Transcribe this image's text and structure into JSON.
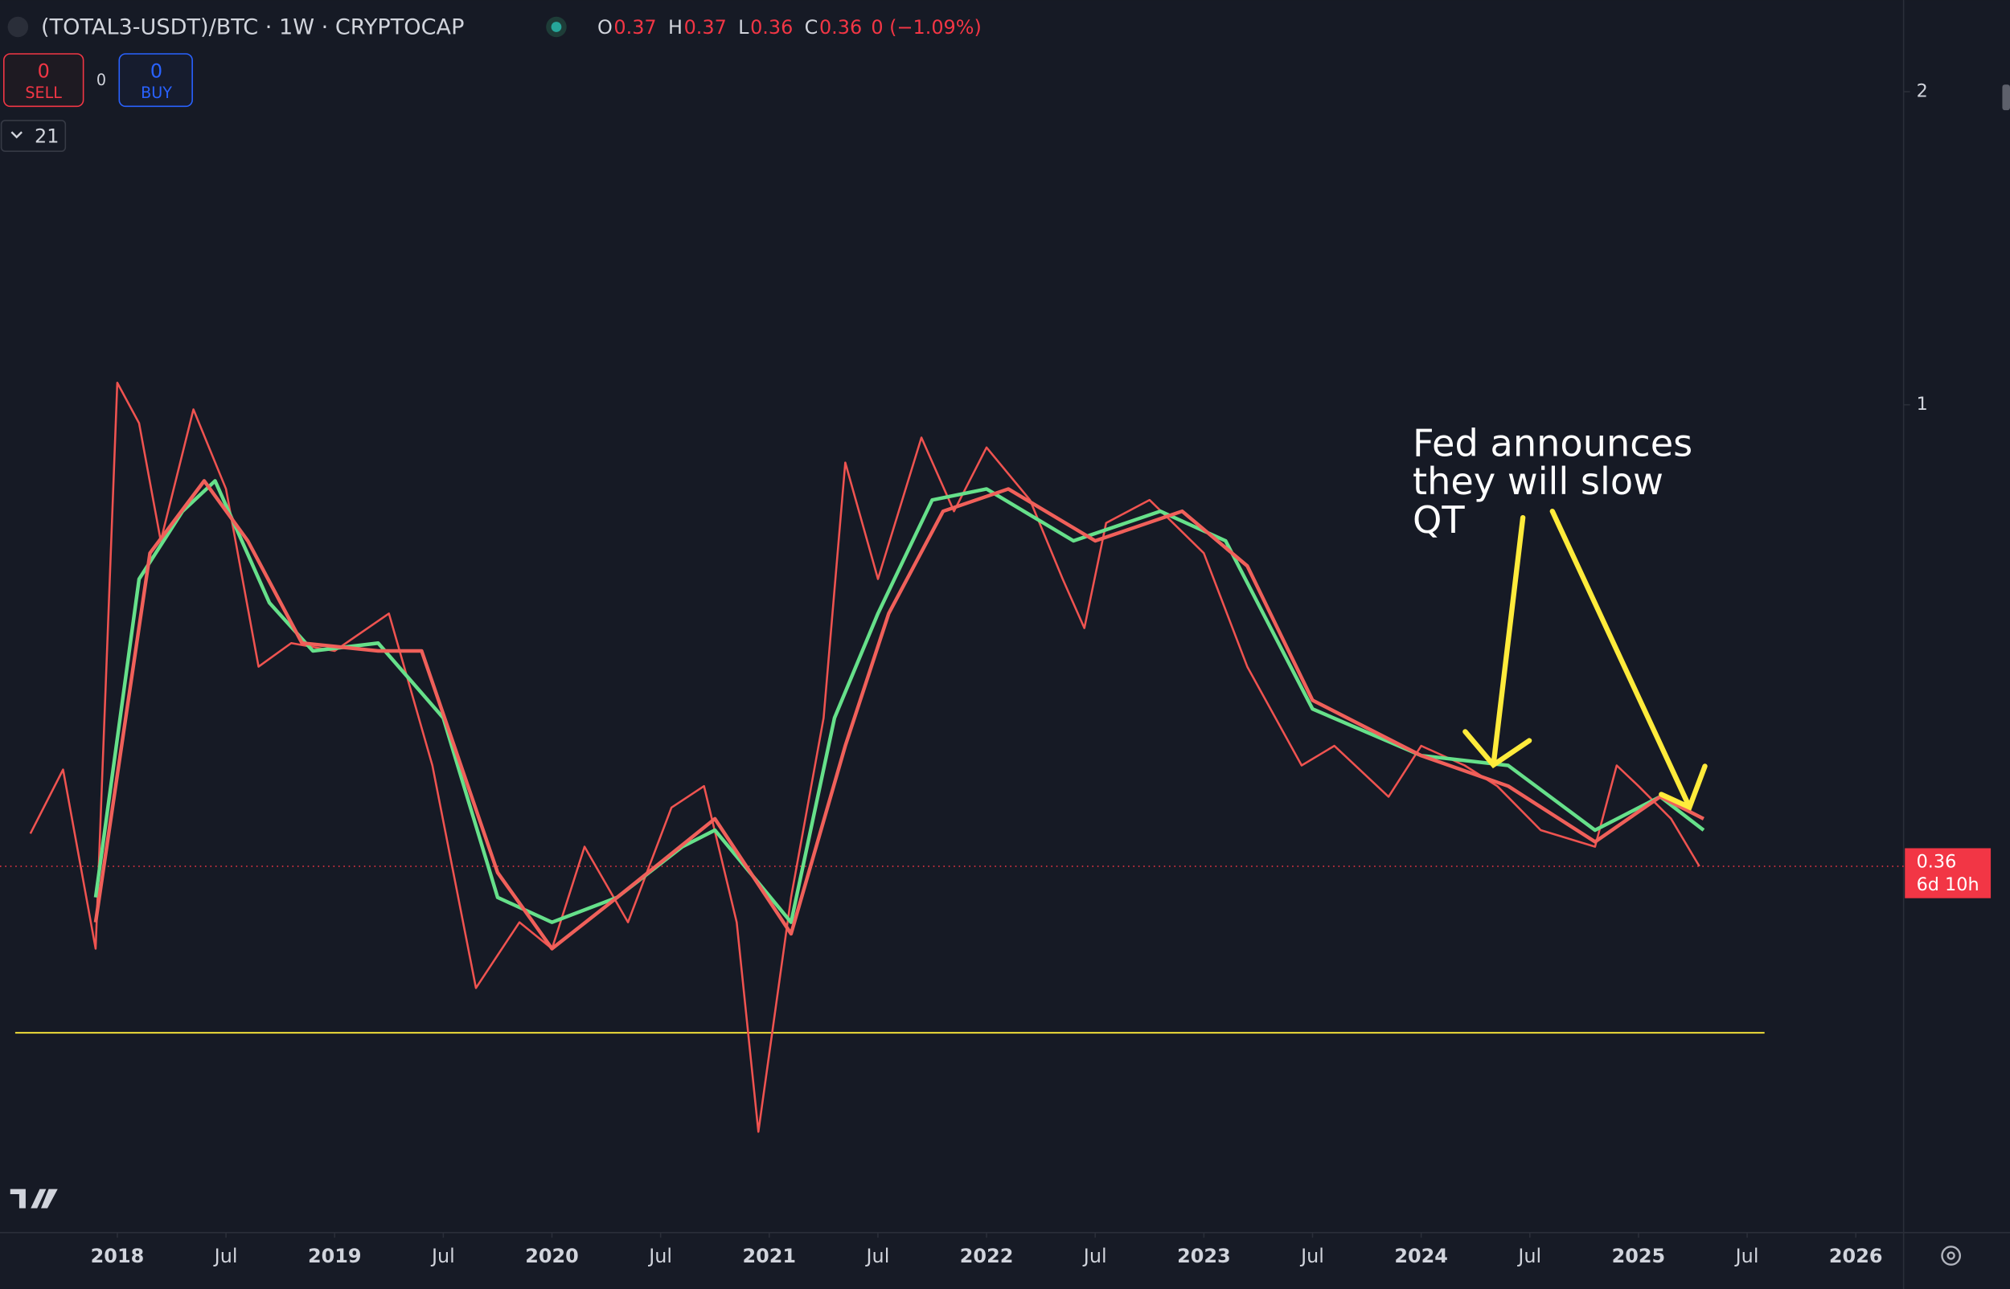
{
  "header": {
    "symbol": "(TOTAL3-USDT)/BTC · 1W · CRYPTOCAP",
    "ohlc": [
      {
        "label": "O",
        "value": "0.37"
      },
      {
        "label": "H",
        "value": "0.37"
      },
      {
        "label": "L",
        "value": "0.36"
      },
      {
        "label": "C",
        "value": "0.36"
      }
    ],
    "change": "0 (−1.09%)"
  },
  "trade": {
    "sell": {
      "price": "0",
      "label": "SELL"
    },
    "spread": "0",
    "buy": {
      "price": "0",
      "label": "BUY"
    }
  },
  "indicator_count": "21",
  "price_badge": {
    "price": "0.36",
    "countdown": "6d 10h"
  },
  "chart_data": {
    "type": "line",
    "log_scale": true,
    "annotation": [
      "Fed announces",
      "they will slow",
      "QT"
    ],
    "xlim": [
      2017.46,
      2026.22
    ],
    "xticks": [
      2018,
      {
        "value": 2018.5,
        "label": "Jul"
      },
      2019,
      {
        "value": 2019.5,
        "label": "Jul"
      },
      2020,
      {
        "value": 2020.5,
        "label": "Jul"
      },
      2021,
      {
        "value": 2021.5,
        "label": "Jul"
      },
      2022,
      {
        "value": 2022.5,
        "label": "Jul"
      },
      2023,
      {
        "value": 2023.5,
        "label": "Jul"
      },
      2024,
      {
        "value": 2024.5,
        "label": "Jul"
      },
      2025,
      {
        "value": 2025.5,
        "label": "Jul"
      },
      2026
    ],
    "ylim": [
      0.16,
      2.45
    ],
    "yticks": [
      1,
      2
    ],
    "last_price": 0.36,
    "support_level": 0.249,
    "support_x": [
      2017.53,
      2025.58
    ],
    "series": [
      {
        "color": "#ef5350",
        "x": [
          2017.6,
          2017.75,
          2017.9,
          2018.0,
          2018.1,
          2018.2,
          2018.35,
          2018.5,
          2018.65,
          2018.8,
          2019.0,
          2019.25,
          2019.45,
          2019.65,
          2019.85,
          2020.0,
          2020.15,
          2020.35,
          2020.55,
          2020.7,
          2020.85,
          2020.95,
          2021.1,
          2021.25,
          2021.35,
          2021.5,
          2021.7,
          2021.85,
          2022.0,
          2022.2,
          2022.35,
          2022.45,
          2022.55,
          2022.75,
          2023.0,
          2023.2,
          2023.45,
          2023.6,
          2023.85,
          2024.0,
          2024.2,
          2024.35,
          2024.55,
          2024.8,
          2024.9,
          2025.0,
          2025.15,
          2025.28
        ],
        "values": [
          0.387,
          0.446,
          0.3,
          1.05,
          0.96,
          0.74,
          0.99,
          0.83,
          0.56,
          0.59,
          0.58,
          0.63,
          0.45,
          0.275,
          0.318,
          0.3,
          0.376,
          0.318,
          0.41,
          0.43,
          0.318,
          0.2,
          0.336,
          0.5,
          0.88,
          0.68,
          0.93,
          0.79,
          0.91,
          0.81,
          0.68,
          0.61,
          0.77,
          0.81,
          0.72,
          0.56,
          0.45,
          0.47,
          0.42,
          0.47,
          0.45,
          0.43,
          0.39,
          0.376,
          0.45,
          0.43,
          0.4,
          0.36
        ]
      },
      {
        "color": "#66e08a",
        "x": [
          2017.9,
          2018.1,
          2018.3,
          2018.45,
          2018.7,
          2018.9,
          2019.2,
          2019.5,
          2019.75,
          2020.0,
          2020.3,
          2020.6,
          2020.75,
          2021.1,
          2021.3,
          2021.5,
          2021.75,
          2022.0,
          2022.4,
          2022.8,
          2023.1,
          2023.5,
          2024.0,
          2024.4,
          2024.8,
          2025.1,
          2025.3
        ],
        "values": [
          0.336,
          0.68,
          0.79,
          0.845,
          0.645,
          0.58,
          0.59,
          0.5,
          0.336,
          0.318,
          0.336,
          0.376,
          0.39,
          0.318,
          0.5,
          0.63,
          0.81,
          0.83,
          0.74,
          0.79,
          0.74,
          0.51,
          0.46,
          0.45,
          0.39,
          0.42,
          0.39
        ]
      },
      {
        "color": "#f0605a",
        "x": [
          2017.9,
          2018.15,
          2018.4,
          2018.6,
          2018.85,
          2019.2,
          2019.4,
          2019.75,
          2020.0,
          2020.3,
          2020.75,
          2021.1,
          2021.35,
          2021.55,
          2021.8,
          2022.1,
          2022.5,
          2022.9,
          2023.2,
          2023.5,
          2024.0,
          2024.4,
          2024.8,
          2025.1,
          2025.3
        ],
        "values": [
          0.318,
          0.72,
          0.845,
          0.74,
          0.59,
          0.58,
          0.58,
          0.355,
          0.3,
          0.336,
          0.4,
          0.31,
          0.47,
          0.63,
          0.79,
          0.83,
          0.74,
          0.79,
          0.7,
          0.52,
          0.46,
          0.43,
          0.38,
          0.42,
          0.4
        ]
      }
    ]
  }
}
